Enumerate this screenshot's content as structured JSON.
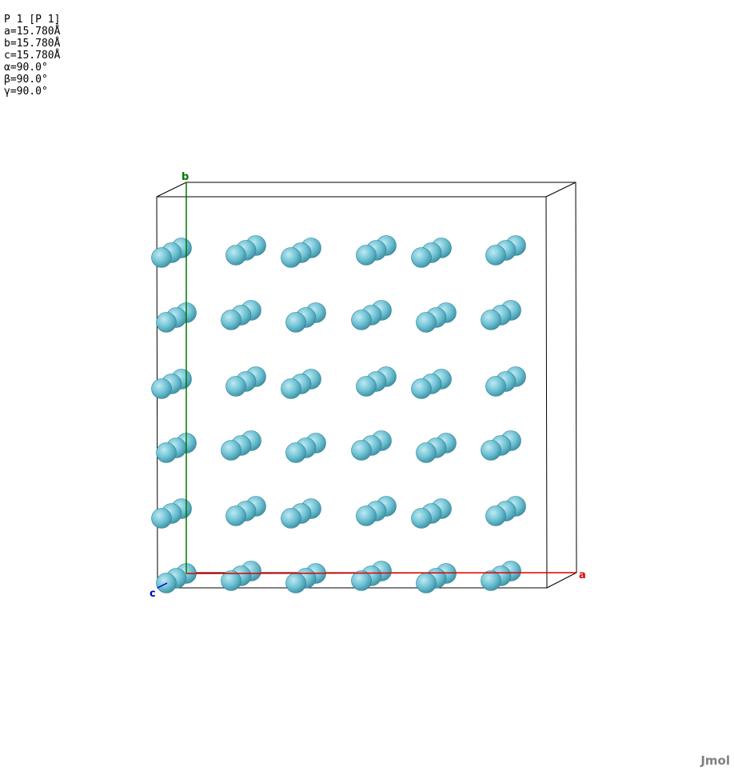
{
  "cell_info": {
    "space_group": "P 1 [P 1]",
    "a": "a=15.780Å",
    "b": "b=15.780Å",
    "c": "c=15.780Å",
    "alpha": "α=90.0°",
    "beta": "β=90.0°",
    "gamma": "γ=90.0°"
  },
  "axes": {
    "a": {
      "label": "a",
      "color": "#dd0000"
    },
    "b": {
      "label": "b",
      "color": "#007700"
    },
    "c": {
      "label": "c",
      "color": "#0000cc"
    }
  },
  "atom_style": {
    "fill": "#6ec2d4",
    "highlight": "#bfe9f2",
    "shade": "#3c8ea1"
  },
  "lattice": {
    "columns": 6,
    "rows": 6,
    "atoms_per_cluster": 3
  },
  "watermark": "Jmol"
}
